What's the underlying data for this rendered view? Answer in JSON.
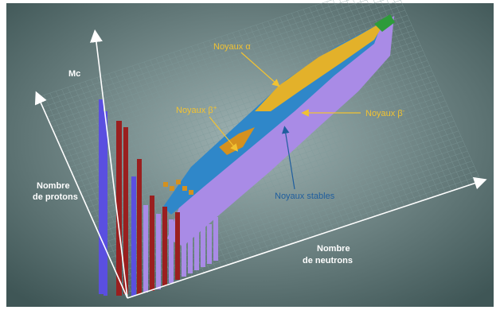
{
  "colors": {
    "background_center": "#9fb3b3",
    "background_edge": "#3f5656",
    "grid_line": "#7f9a9a",
    "axis": "#ffffff",
    "stable": "#2f87c9",
    "beta_minus": "#a98be6",
    "beta_plus": "#d4911f",
    "alpha": "#e3b12a",
    "proton_column": "#5a4fe0",
    "red_column": "#9a1f1f",
    "green_cap": "#2e9b3a",
    "label_yellow": "#f1c232",
    "label_blue": "#1f5e9e"
  },
  "axes": {
    "vertical": "Mc",
    "protons_line1": "Nombre",
    "protons_line2": "de protons",
    "neutrons_line1": "Nombre",
    "neutrons_line2": "de neutrons"
  },
  "annotations": {
    "alpha": "Noyaux α",
    "beta_plus": "Noyaux β",
    "beta_plus_sup": "+",
    "beta_minus": "Noyaux β",
    "beta_minus_sup": "-",
    "stable": "Noyaux stables"
  }
}
